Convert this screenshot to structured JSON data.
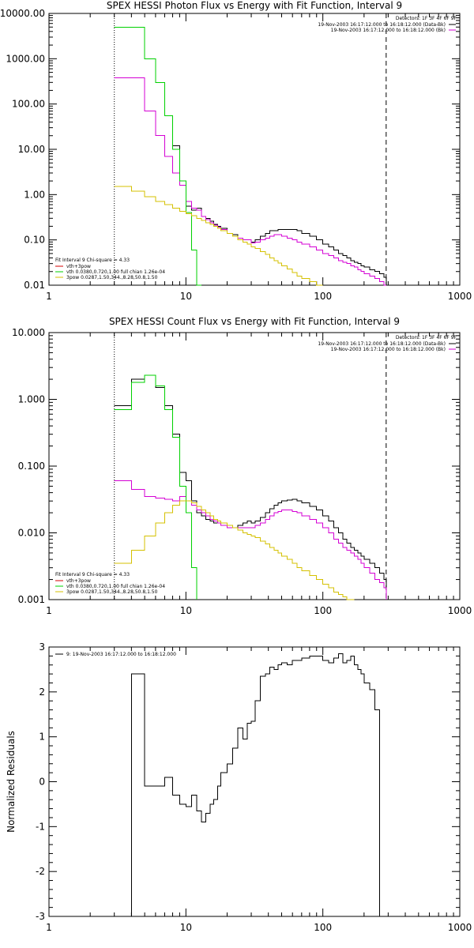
{
  "colors": {
    "black": "#000000",
    "magenta": "#d400d4",
    "green": "#00d000",
    "gold": "#d4c000",
    "red": "#d40000"
  },
  "chart_data": [
    {
      "type": "line",
      "title": "SPEX HESSI Photon Flux vs Energy with Fit Function, Interval 9",
      "xscale": "log",
      "yscale": "log",
      "xlim": [
        1,
        1000
      ],
      "ylim": [
        0.01,
        10000
      ],
      "x_ticks": [
        1,
        10,
        100,
        1000
      ],
      "y_ticks": [
        0.01,
        0.1,
        1.0,
        10.0,
        100.0,
        1000.0,
        10000.0
      ],
      "x_tick_labels": [
        "1",
        "10",
        "100",
        "1000"
      ],
      "y_tick_labels": [
        "0.01",
        "0.10",
        "1.00",
        "10.00",
        "100.00",
        "1000.00",
        "10000.00"
      ],
      "vertical_lines": [
        {
          "x": 3,
          "style": "dotted",
          "color": "#000000"
        },
        {
          "x": 290,
          "style": "dashed",
          "color": "#000000"
        }
      ],
      "legend_right": {
        "header": "Detectors: 1F 3F 4F 6F 9F",
        "entries": [
          {
            "label": "19-Nov-2003 16:17:12.000 to 16:18:12.000 (Data-Bk)",
            "color": "#000000"
          },
          {
            "label": "19-Nov-2003 16:17:12.000 to 16:18:12.000 (Bk)",
            "color": "#d400d4"
          }
        ]
      },
      "legend_left": {
        "header": "Fit Interval 9   Chi-square = 4.33",
        "entries": [
          {
            "label": "vth+3pow",
            "color": "#d40000"
          },
          {
            "label": "vth 0.0380,0.720,1.00  full chian 1.26e-04",
            "color": "#00d000"
          },
          {
            "label": "3pow 0.0287,1.50,344.,8.28,50.8,1.50",
            "color": "#d4c000"
          }
        ]
      },
      "series": [
        {
          "color": "#000000",
          "x": [
            3,
            4,
            5,
            6,
            7,
            8,
            9,
            10,
            11,
            12,
            13,
            14,
            15,
            16,
            17,
            18,
            20,
            22,
            24,
            26,
            28,
            30,
            32,
            35,
            38,
            41,
            44,
            47,
            50,
            55,
            60,
            65,
            70,
            80,
            90,
            100,
            110,
            120,
            130,
            140,
            150,
            160,
            170,
            180,
            190,
            200,
            220,
            240,
            260,
            280,
            290
          ],
          "y": [
            5000,
            5000,
            1000,
            300,
            55,
            12,
            2,
            0.55,
            0.45,
            0.5,
            0.33,
            0.3,
            0.26,
            0.22,
            0.2,
            0.18,
            0.14,
            0.13,
            0.11,
            0.1,
            0.1,
            0.09,
            0.1,
            0.12,
            0.14,
            0.16,
            0.16,
            0.17,
            0.17,
            0.17,
            0.17,
            0.16,
            0.14,
            0.12,
            0.1,
            0.08,
            0.07,
            0.06,
            0.05,
            0.045,
            0.04,
            0.035,
            0.032,
            0.03,
            0.027,
            0.025,
            0.022,
            0.02,
            0.018,
            0.015,
            0.01
          ]
        },
        {
          "color": "#d400d4",
          "x": [
            3,
            4,
            5,
            6,
            7,
            8,
            9,
            10,
            11,
            12,
            13,
            14,
            15,
            16,
            17,
            18,
            20,
            22,
            24,
            26,
            28,
            30,
            32,
            35,
            38,
            41,
            44,
            47,
            50,
            55,
            60,
            65,
            70,
            80,
            90,
            100,
            110,
            120,
            130,
            140,
            150,
            160,
            170,
            180,
            190,
            200,
            220,
            240,
            260,
            280,
            290
          ],
          "y": [
            380,
            380,
            70,
            20,
            7,
            3,
            1.6,
            0.7,
            0.5,
            0.45,
            0.33,
            0.28,
            0.24,
            0.21,
            0.19,
            0.17,
            0.14,
            0.12,
            0.11,
            0.1,
            0.1,
            0.085,
            0.09,
            0.1,
            0.11,
            0.12,
            0.13,
            0.13,
            0.12,
            0.11,
            0.1,
            0.09,
            0.08,
            0.07,
            0.06,
            0.05,
            0.045,
            0.04,
            0.035,
            0.032,
            0.03,
            0.027,
            0.025,
            0.022,
            0.02,
            0.018,
            0.016,
            0.014,
            0.012,
            0.01,
            0.01
          ]
        },
        {
          "color": "#00d000",
          "x": [
            3,
            4,
            5,
            6,
            7,
            8,
            9,
            10,
            11,
            12,
            13
          ],
          "y": [
            5000,
            5000,
            1000,
            300,
            55,
            10,
            2,
            0.4,
            0.06,
            0.01,
            0.01
          ]
        },
        {
          "color": "#d4c000",
          "x": [
            3,
            4,
            5,
            6,
            7,
            8,
            9,
            10,
            11,
            12,
            13,
            14,
            15,
            16,
            17,
            18,
            20,
            22,
            24,
            26,
            28,
            30,
            32,
            35,
            38,
            41,
            44,
            47,
            50,
            55,
            60,
            65,
            70,
            80,
            90,
            100
          ],
          "y": [
            1.5,
            1.2,
            0.9,
            0.7,
            0.6,
            0.5,
            0.43,
            0.38,
            0.34,
            0.3,
            0.27,
            0.24,
            0.22,
            0.2,
            0.18,
            0.16,
            0.14,
            0.12,
            0.1,
            0.09,
            0.08,
            0.07,
            0.065,
            0.055,
            0.048,
            0.04,
            0.035,
            0.031,
            0.027,
            0.023,
            0.019,
            0.016,
            0.014,
            0.012,
            0.01,
            0.01
          ]
        }
      ]
    },
    {
      "type": "line",
      "title": "SPEX HESSI Count Flux vs Energy with Fit Function, Interval 9",
      "xscale": "log",
      "yscale": "log",
      "xlim": [
        1,
        1000
      ],
      "ylim": [
        0.001,
        10
      ],
      "x_ticks": [
        1,
        10,
        100,
        1000
      ],
      "y_ticks": [
        0.001,
        0.01,
        0.1,
        1.0,
        10.0
      ],
      "x_tick_labels": [
        "1",
        "10",
        "100",
        "1000"
      ],
      "y_tick_labels": [
        "0.001",
        "0.010",
        "0.100",
        "1.000",
        "10.000"
      ],
      "vertical_lines": [
        {
          "x": 3,
          "style": "dotted",
          "color": "#000000"
        },
        {
          "x": 290,
          "style": "dashed",
          "color": "#000000"
        }
      ],
      "legend_right": {
        "header": "Detectors: 1F 3F 4F 6F 9F",
        "entries": [
          {
            "label": "19-Nov-2003 16:17:12.000 to 16:18:12.000 (Data-Bk)",
            "color": "#000000"
          },
          {
            "label": "19-Nov-2003 16:17:12.000 to 16:18:12.000 (Bk)",
            "color": "#d400d4"
          }
        ]
      },
      "legend_left": {
        "header": "Fit Interval 9   Chi-square = 4.33",
        "entries": [
          {
            "label": "vth+3pow",
            "color": "#d40000"
          },
          {
            "label": "vth 0.0380,0.720,1.00  full chian 1.26e-04",
            "color": "#00d000"
          },
          {
            "label": "3pow 0.0287,1.50,344.,8.28,50.8,1.50",
            "color": "#d4c000"
          }
        ]
      },
      "series": [
        {
          "color": "#000000",
          "x": [
            3,
            4,
            5,
            6,
            7,
            8,
            9,
            10,
            11,
            12,
            13,
            14,
            15,
            16,
            17,
            18,
            20,
            22,
            24,
            26,
            28,
            30,
            32,
            35,
            38,
            41,
            44,
            47,
            50,
            55,
            60,
            65,
            70,
            80,
            90,
            100,
            110,
            120,
            130,
            140,
            150,
            160,
            170,
            180,
            190,
            200,
            220,
            240,
            260,
            280,
            290
          ],
          "y": [
            0.8,
            2,
            2.3,
            1.5,
            0.8,
            0.3,
            0.08,
            0.06,
            0.03,
            0.02,
            0.018,
            0.016,
            0.015,
            0.014,
            0.014,
            0.013,
            0.013,
            0.012,
            0.013,
            0.014,
            0.015,
            0.014,
            0.015,
            0.017,
            0.02,
            0.023,
            0.026,
            0.028,
            0.03,
            0.031,
            0.032,
            0.03,
            0.028,
            0.025,
            0.022,
            0.018,
            0.015,
            0.012,
            0.01,
            0.008,
            0.007,
            0.006,
            0.0055,
            0.005,
            0.0045,
            0.004,
            0.0035,
            0.003,
            0.0025,
            0.002,
            0.001
          ]
        },
        {
          "color": "#d400d4",
          "x": [
            3,
            4,
            5,
            6,
            7,
            8,
            9,
            10,
            11,
            12,
            13,
            14,
            15,
            16,
            17,
            18,
            20,
            22,
            24,
            26,
            28,
            30,
            32,
            35,
            38,
            41,
            44,
            47,
            50,
            55,
            60,
            65,
            70,
            80,
            90,
            100,
            110,
            120,
            130,
            140,
            150,
            160,
            170,
            180,
            190,
            200,
            220,
            240,
            260,
            280,
            290
          ],
          "y": [
            0.06,
            0.045,
            0.035,
            0.033,
            0.032,
            0.03,
            0.035,
            0.03,
            0.026,
            0.022,
            0.02,
            0.018,
            0.016,
            0.015,
            0.014,
            0.013,
            0.012,
            0.012,
            0.012,
            0.012,
            0.012,
            0.012,
            0.013,
            0.014,
            0.016,
            0.018,
            0.02,
            0.021,
            0.022,
            0.022,
            0.021,
            0.02,
            0.018,
            0.016,
            0.014,
            0.012,
            0.01,
            0.008,
            0.007,
            0.006,
            0.0055,
            0.005,
            0.0045,
            0.004,
            0.0035,
            0.003,
            0.0025,
            0.002,
            0.0018,
            0.0015,
            0.001
          ]
        },
        {
          "color": "#00d000",
          "x": [
            3,
            4,
            5,
            6,
            7,
            8,
            9,
            10,
            11,
            12
          ],
          "y": [
            0.7,
            1.8,
            2.3,
            1.6,
            0.7,
            0.27,
            0.05,
            0.02,
            0.003,
            0.001
          ]
        },
        {
          "color": "#d4c000",
          "x": [
            3,
            4,
            5,
            6,
            7,
            8,
            9,
            10,
            11,
            12,
            13,
            14,
            15,
            16,
            17,
            18,
            20,
            22,
            24,
            26,
            28,
            30,
            32,
            35,
            38,
            41,
            44,
            47,
            50,
            55,
            60,
            65,
            70,
            80,
            90,
            100,
            110,
            120,
            130,
            140,
            150,
            160,
            170
          ],
          "y": [
            0.0035,
            0.0055,
            0.009,
            0.014,
            0.02,
            0.026,
            0.03,
            0.03,
            0.028,
            0.025,
            0.022,
            0.02,
            0.018,
            0.016,
            0.015,
            0.014,
            0.013,
            0.012,
            0.011,
            0.01,
            0.0095,
            0.009,
            0.0085,
            0.0075,
            0.0068,
            0.006,
            0.0055,
            0.005,
            0.0045,
            0.004,
            0.0035,
            0.003,
            0.0027,
            0.0023,
            0.002,
            0.0017,
            0.0015,
            0.0013,
            0.0012,
            0.0011,
            0.001,
            0.001,
            0.001
          ]
        }
      ]
    },
    {
      "type": "line",
      "ylabel": "Normalized Residuals",
      "xscale": "log",
      "yscale": "linear",
      "xlim": [
        1,
        1000
      ],
      "ylim": [
        -3,
        3
      ],
      "x_ticks": [
        1,
        10,
        100,
        1000
      ],
      "y_ticks": [
        -3,
        -2,
        -1,
        0,
        1,
        2,
        3
      ],
      "x_tick_labels": [
        "1",
        "10",
        "100",
        "1000"
      ],
      "y_tick_labels": [
        "-3",
        "-2",
        "-1",
        "0",
        "1",
        "2",
        "3"
      ],
      "legend_left": {
        "header": "",
        "entries": [
          {
            "label": "9: 19-Nov-2003 16:17:12.000 to 16:18:12.000",
            "color": "#000000"
          }
        ]
      },
      "series": [
        {
          "color": "#000000",
          "x": [
            3,
            4,
            5,
            6,
            7,
            8,
            9,
            10,
            11,
            12,
            13,
            14,
            15,
            16,
            17,
            18,
            20,
            22,
            24,
            26,
            28,
            30,
            32,
            35,
            38,
            41,
            44,
            47,
            50,
            55,
            60,
            65,
            70,
            80,
            90,
            100,
            110,
            120,
            130,
            140,
            150,
            160,
            170,
            180,
            190,
            200,
            220,
            240,
            260,
            280,
            290
          ],
          "y": [
            -3,
            2.4,
            -0.1,
            -0.1,
            0.1,
            -0.3,
            -0.5,
            -0.55,
            -0.3,
            -0.65,
            -0.9,
            -0.7,
            -0.5,
            -0.4,
            -0.1,
            0.2,
            0.4,
            0.75,
            1.2,
            0.95,
            1.3,
            1.35,
            1.8,
            2.35,
            2.4,
            2.55,
            2.5,
            2.6,
            2.65,
            2.6,
            2.7,
            2.7,
            2.75,
            2.8,
            2.8,
            2.7,
            2.65,
            2.75,
            2.85,
            2.65,
            2.7,
            2.8,
            2.6,
            2.5,
            2.4,
            2.2,
            2.05,
            1.6,
            -3,
            -3,
            -3
          ]
        }
      ]
    }
  ]
}
